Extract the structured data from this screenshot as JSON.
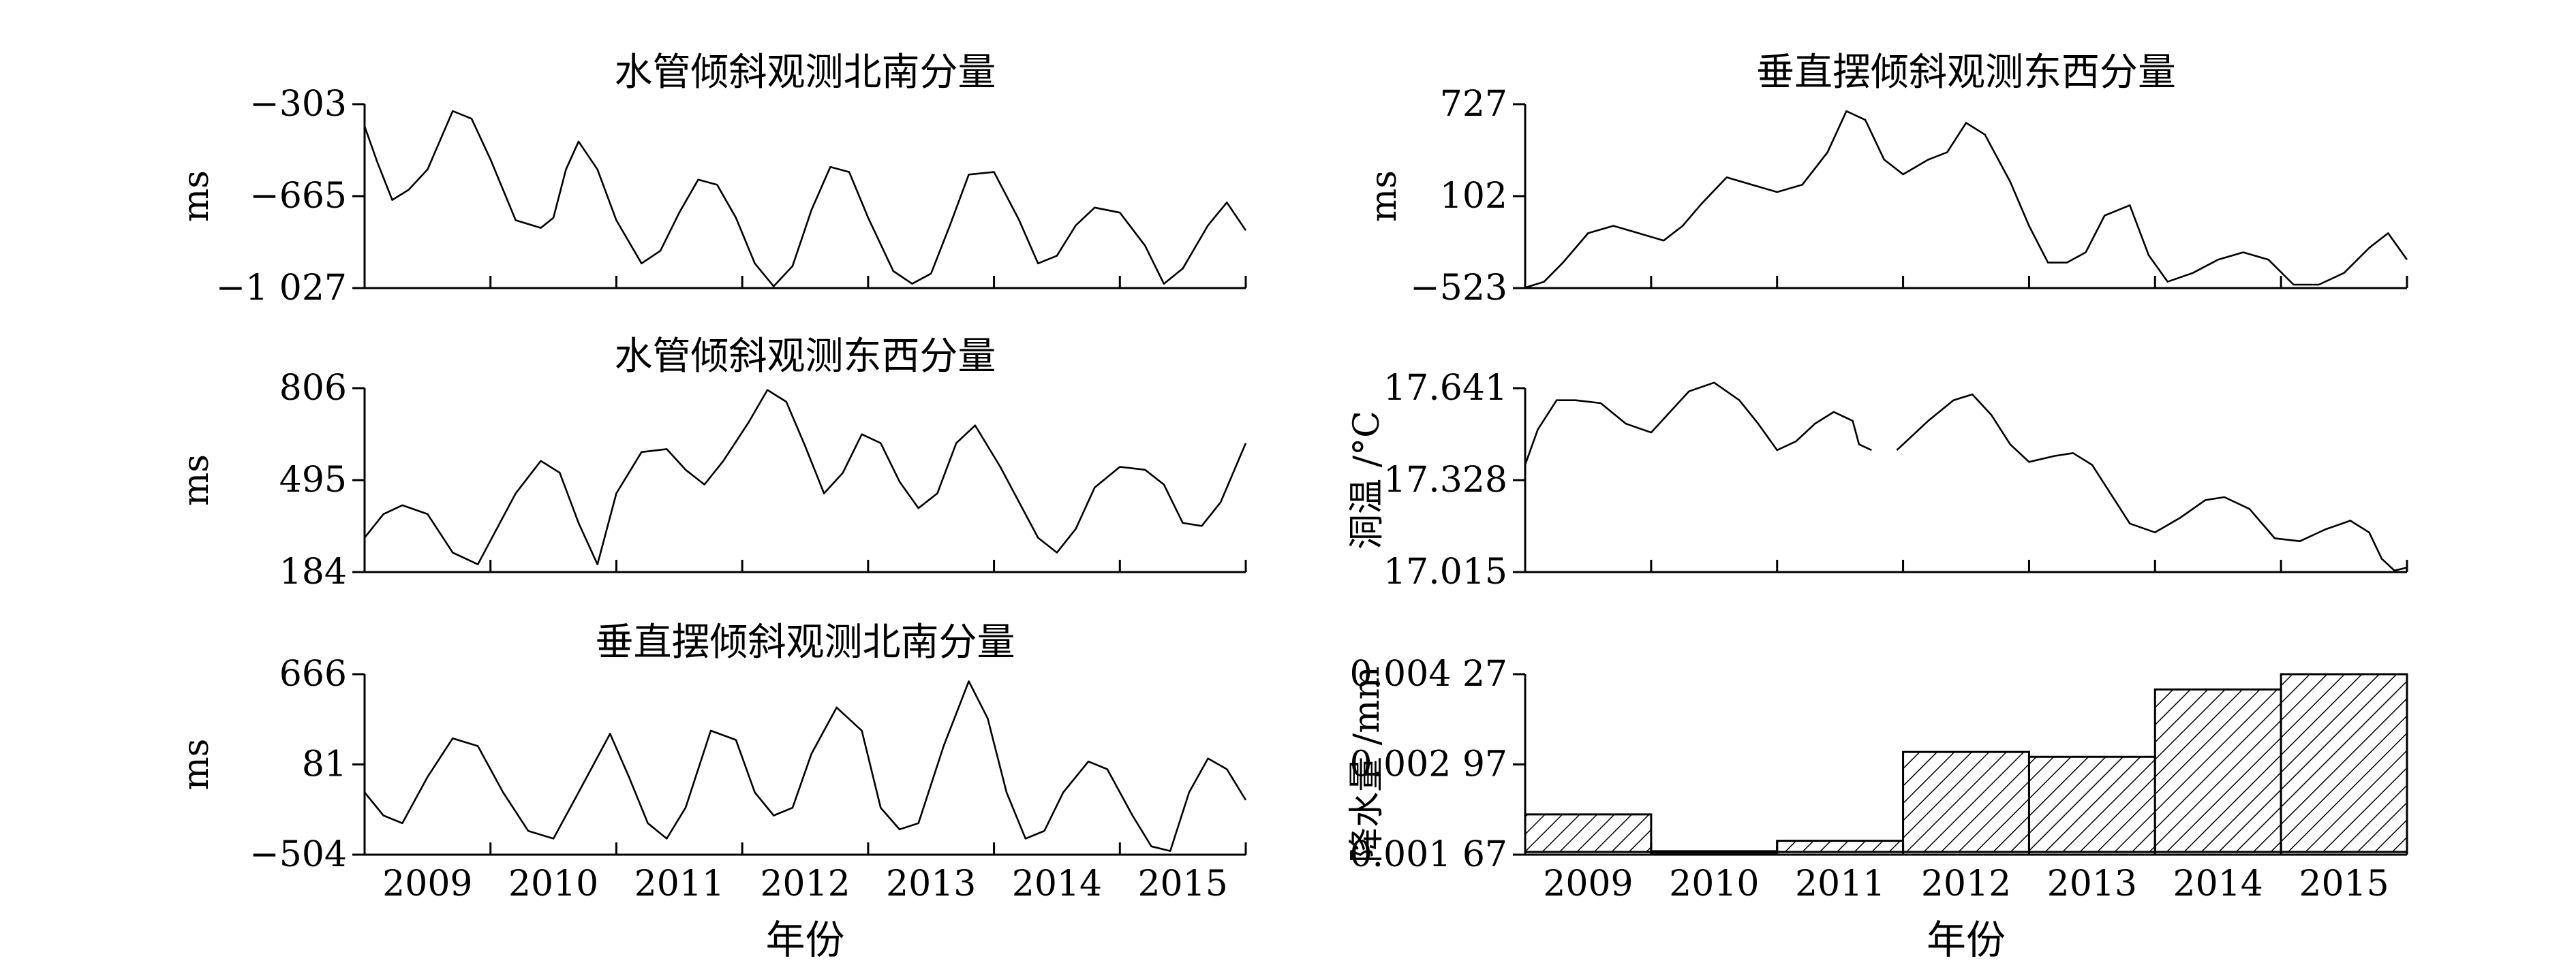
{
  "chart_data": [
    {
      "id": "p1",
      "type": "line",
      "title": "水管倾斜观测北南分量",
      "ylabel": "ms",
      "xlabel": "",
      "yticks": [
        "−303",
        "−665",
        "−1 027"
      ],
      "ylim": [
        -1027,
        -303
      ],
      "xlim": [
        2008.5,
        2015.5
      ],
      "xticks": [
        2009,
        2010,
        2011,
        2012,
        2013,
        2014,
        2015
      ],
      "show_xticklabels": false,
      "series": [
        {
          "x": [
            2008.5,
            2008.6,
            2008.72,
            2008.85,
            2009.0,
            2009.2,
            2009.35,
            2009.5,
            2009.7,
            2009.9,
            2010.0,
            2010.1,
            2010.2,
            2010.35,
            2010.5,
            2010.7,
            2010.85,
            2011.0,
            2011.15,
            2011.3,
            2011.45,
            2011.6,
            2011.75,
            2011.9,
            2012.05,
            2012.2,
            2012.35,
            2012.5,
            2012.7,
            2012.85,
            2013.0,
            2013.15,
            2013.3,
            2013.5,
            2013.7,
            2013.85,
            2014.0,
            2014.15,
            2014.3,
            2014.5,
            2014.7,
            2014.85,
            2015.0,
            2015.2,
            2015.35,
            2015.5
          ],
          "y": [
            -390,
            -530,
            -680,
            -640,
            -560,
            -330,
            -360,
            -520,
            -760,
            -790,
            -750,
            -560,
            -450,
            -560,
            -760,
            -930,
            -880,
            -730,
            -600,
            -620,
            -750,
            -930,
            -1020,
            -940,
            -720,
            -550,
            -570,
            -750,
            -960,
            -1010,
            -970,
            -780,
            -580,
            -570,
            -760,
            -930,
            -900,
            -780,
            -710,
            -730,
            -860,
            -1010,
            -950,
            -780,
            -690,
            -800
          ]
        }
      ]
    },
    {
      "id": "p2",
      "type": "line",
      "title": "水管倾斜观测东西分量",
      "ylabel": "ms",
      "xlabel": "",
      "yticks": [
        "806",
        "495",
        "184"
      ],
      "ylim": [
        184,
        806
      ],
      "xlim": [
        2008.5,
        2015.5
      ],
      "xticks": [
        2009,
        2010,
        2011,
        2012,
        2013,
        2014,
        2015
      ],
      "show_xticklabels": false,
      "series": [
        {
          "x": [
            2008.5,
            2008.65,
            2008.8,
            2009.0,
            2009.2,
            2009.4,
            2009.55,
            2009.7,
            2009.9,
            2010.05,
            2010.2,
            2010.35,
            2010.5,
            2010.7,
            2010.9,
            2011.05,
            2011.2,
            2011.35,
            2011.55,
            2011.7,
            2011.85,
            2012.0,
            2012.15,
            2012.3,
            2012.45,
            2012.6,
            2012.75,
            2012.9,
            2013.05,
            2013.2,
            2013.35,
            2013.55,
            2013.7,
            2013.85,
            2014.0,
            2014.15,
            2014.3,
            2014.5,
            2014.7,
            2014.85,
            2015.0,
            2015.15,
            2015.3,
            2015.5
          ],
          "y": [
            300,
            380,
            410,
            380,
            250,
            210,
            330,
            450,
            560,
            520,
            350,
            210,
            450,
            590,
            600,
            530,
            480,
            560,
            690,
            800,
            760,
            610,
            450,
            520,
            650,
            620,
            490,
            400,
            450,
            620,
            680,
            540,
            420,
            300,
            250,
            330,
            470,
            540,
            530,
            480,
            350,
            340,
            420,
            620
          ]
        }
      ]
    },
    {
      "id": "p3",
      "type": "line",
      "title": "垂直摆倾斜观测北南分量",
      "ylabel": "ms",
      "xlabel": "年份",
      "yticks": [
        "666",
        "81",
        "−504"
      ],
      "ylim": [
        -504,
        666
      ],
      "xlim": [
        2008.5,
        2015.5
      ],
      "xticks": [
        2009,
        2010,
        2011,
        2012,
        2013,
        2014,
        2015
      ],
      "xticklabels": [
        "2009",
        "2010",
        "2011",
        "2012",
        "2013",
        "2014",
        "2015"
      ],
      "show_xticklabels": true,
      "series": [
        {
          "x": [
            2008.5,
            2008.65,
            2008.8,
            2009.0,
            2009.2,
            2009.4,
            2009.6,
            2009.8,
            2010.0,
            2010.2,
            2010.45,
            2010.6,
            2010.75,
            2010.9,
            2011.05,
            2011.25,
            2011.45,
            2011.6,
            2011.75,
            2011.9,
            2012.05,
            2012.25,
            2012.45,
            2012.6,
            2012.75,
            2012.9,
            2013.1,
            2013.3,
            2013.45,
            2013.6,
            2013.75,
            2013.9,
            2014.05,
            2014.25,
            2014.4,
            2014.6,
            2014.75,
            2014.9,
            2015.05,
            2015.2,
            2015.35,
            2015.5
          ],
          "y": [
            -100,
            -250,
            -300,
            0,
            250,
            200,
            -100,
            -350,
            -400,
            -100,
            280,
            0,
            -300,
            -400,
            -200,
            300,
            240,
            -100,
            -250,
            -200,
            150,
            450,
            300,
            -200,
            -340,
            -300,
            200,
            620,
            380,
            -100,
            -400,
            -350,
            -100,
            100,
            50,
            -250,
            -450,
            -480,
            -100,
            120,
            50,
            -150
          ]
        }
      ]
    },
    {
      "id": "p4",
      "type": "line",
      "title": "垂直摆倾斜观测东西分量",
      "ylabel": "ms",
      "xlabel": "",
      "yticks": [
        "727",
        "102",
        "−523"
      ],
      "ylim": [
        -523,
        727
      ],
      "xlim": [
        2008.5,
        2015.5
      ],
      "xticks": [
        2009,
        2010,
        2011,
        2012,
        2013,
        2014,
        2015
      ],
      "show_xticklabels": false,
      "series": [
        {
          "x": [
            2008.5,
            2008.65,
            2008.8,
            2009.0,
            2009.2,
            2009.4,
            2009.6,
            2009.75,
            2009.9,
            2010.1,
            2010.3,
            2010.5,
            2010.7,
            2010.9,
            2011.05,
            2011.2,
            2011.35,
            2011.5,
            2011.7,
            2011.85,
            2012.0,
            2012.15,
            2012.35,
            2012.5,
            2012.65,
            2012.8,
            2012.95,
            2013.1,
            2013.3,
            2013.45,
            2013.6,
            2013.8,
            2014.0,
            2014.2,
            2014.4,
            2014.6,
            2014.8,
            2015.0,
            2015.2,
            2015.35,
            2015.5
          ],
          "y": [
            -520,
            -480,
            -350,
            -150,
            -100,
            -150,
            -200,
            -100,
            50,
            230,
            180,
            130,
            180,
            400,
            680,
            620,
            350,
            250,
            350,
            400,
            600,
            520,
            200,
            -100,
            -350,
            -350,
            -280,
            -30,
            40,
            -300,
            -480,
            -420,
            -330,
            -280,
            -330,
            -500,
            -500,
            -420,
            -250,
            -150,
            -330
          ]
        }
      ]
    },
    {
      "id": "p5",
      "type": "line",
      "title": "",
      "ylabel": "洞温 /°C",
      "xlabel": "",
      "yticks": [
        "17.641",
        "17.328",
        "17.015"
      ],
      "ylim": [
        17.015,
        17.641
      ],
      "xlim": [
        2008.5,
        2015.5
      ],
      "xticks": [
        2009,
        2010,
        2011,
        2012,
        2013,
        2014,
        2015
      ],
      "show_xticklabels": false,
      "series": [
        {
          "x": [
            2008.5,
            2008.6,
            2008.75,
            2008.9,
            2009.1,
            2009.3,
            2009.5,
            2009.65,
            2009.8,
            2010.0,
            2010.2,
            2010.35,
            2010.5,
            2010.65,
            2010.8,
            2010.95,
            2011.1,
            2011.15,
            2011.25
          ],
          "y": [
            17.38,
            17.5,
            17.6,
            17.6,
            17.59,
            17.52,
            17.49,
            17.56,
            17.63,
            17.66,
            17.6,
            17.52,
            17.43,
            17.46,
            17.52,
            17.56,
            17.53,
            17.45,
            17.43
          ]
        },
        {
          "x": [
            2011.45,
            2011.55,
            2011.7,
            2011.9,
            2012.05,
            2012.2,
            2012.35,
            2012.5,
            2012.7,
            2012.85,
            2013.0,
            2013.15,
            2013.3,
            2013.5,
            2013.7,
            2013.9,
            2014.05,
            2014.25,
            2014.45,
            2014.65,
            2014.85,
            2015.05,
            2015.2,
            2015.3,
            2015.4,
            2015.5
          ],
          "y": [
            17.43,
            17.47,
            17.53,
            17.6,
            17.62,
            17.55,
            17.45,
            17.39,
            17.41,
            17.42,
            17.38,
            17.28,
            17.18,
            17.15,
            17.2,
            17.26,
            17.27,
            17.23,
            17.13,
            17.12,
            17.16,
            17.19,
            17.15,
            17.06,
            17.02,
            17.03
          ]
        }
      ]
    },
    {
      "id": "p6",
      "type": "bar",
      "title": "",
      "ylabel": "降水量 /mm",
      "xlabel": "年份",
      "yticks": [
        "0.004 27",
        "0.002 97",
        "0.001 67"
      ],
      "ylim": [
        0.00167,
        0.00427
      ],
      "xlim": [
        2008.5,
        2015.5
      ],
      "xticks": [
        2009,
        2010,
        2011,
        2012,
        2013,
        2014,
        2015
      ],
      "xticklabels": [
        "2009",
        "2010",
        "2011",
        "2012",
        "2013",
        "2014",
        "2015"
      ],
      "show_xticklabels": true,
      "categories": [
        "2009",
        "2010",
        "2011",
        "2012",
        "2013",
        "2014",
        "2015"
      ],
      "values": [
        0.00225,
        0.00172,
        0.00187,
        0.00315,
        0.00308,
        0.00405,
        0.00433
      ]
    }
  ]
}
